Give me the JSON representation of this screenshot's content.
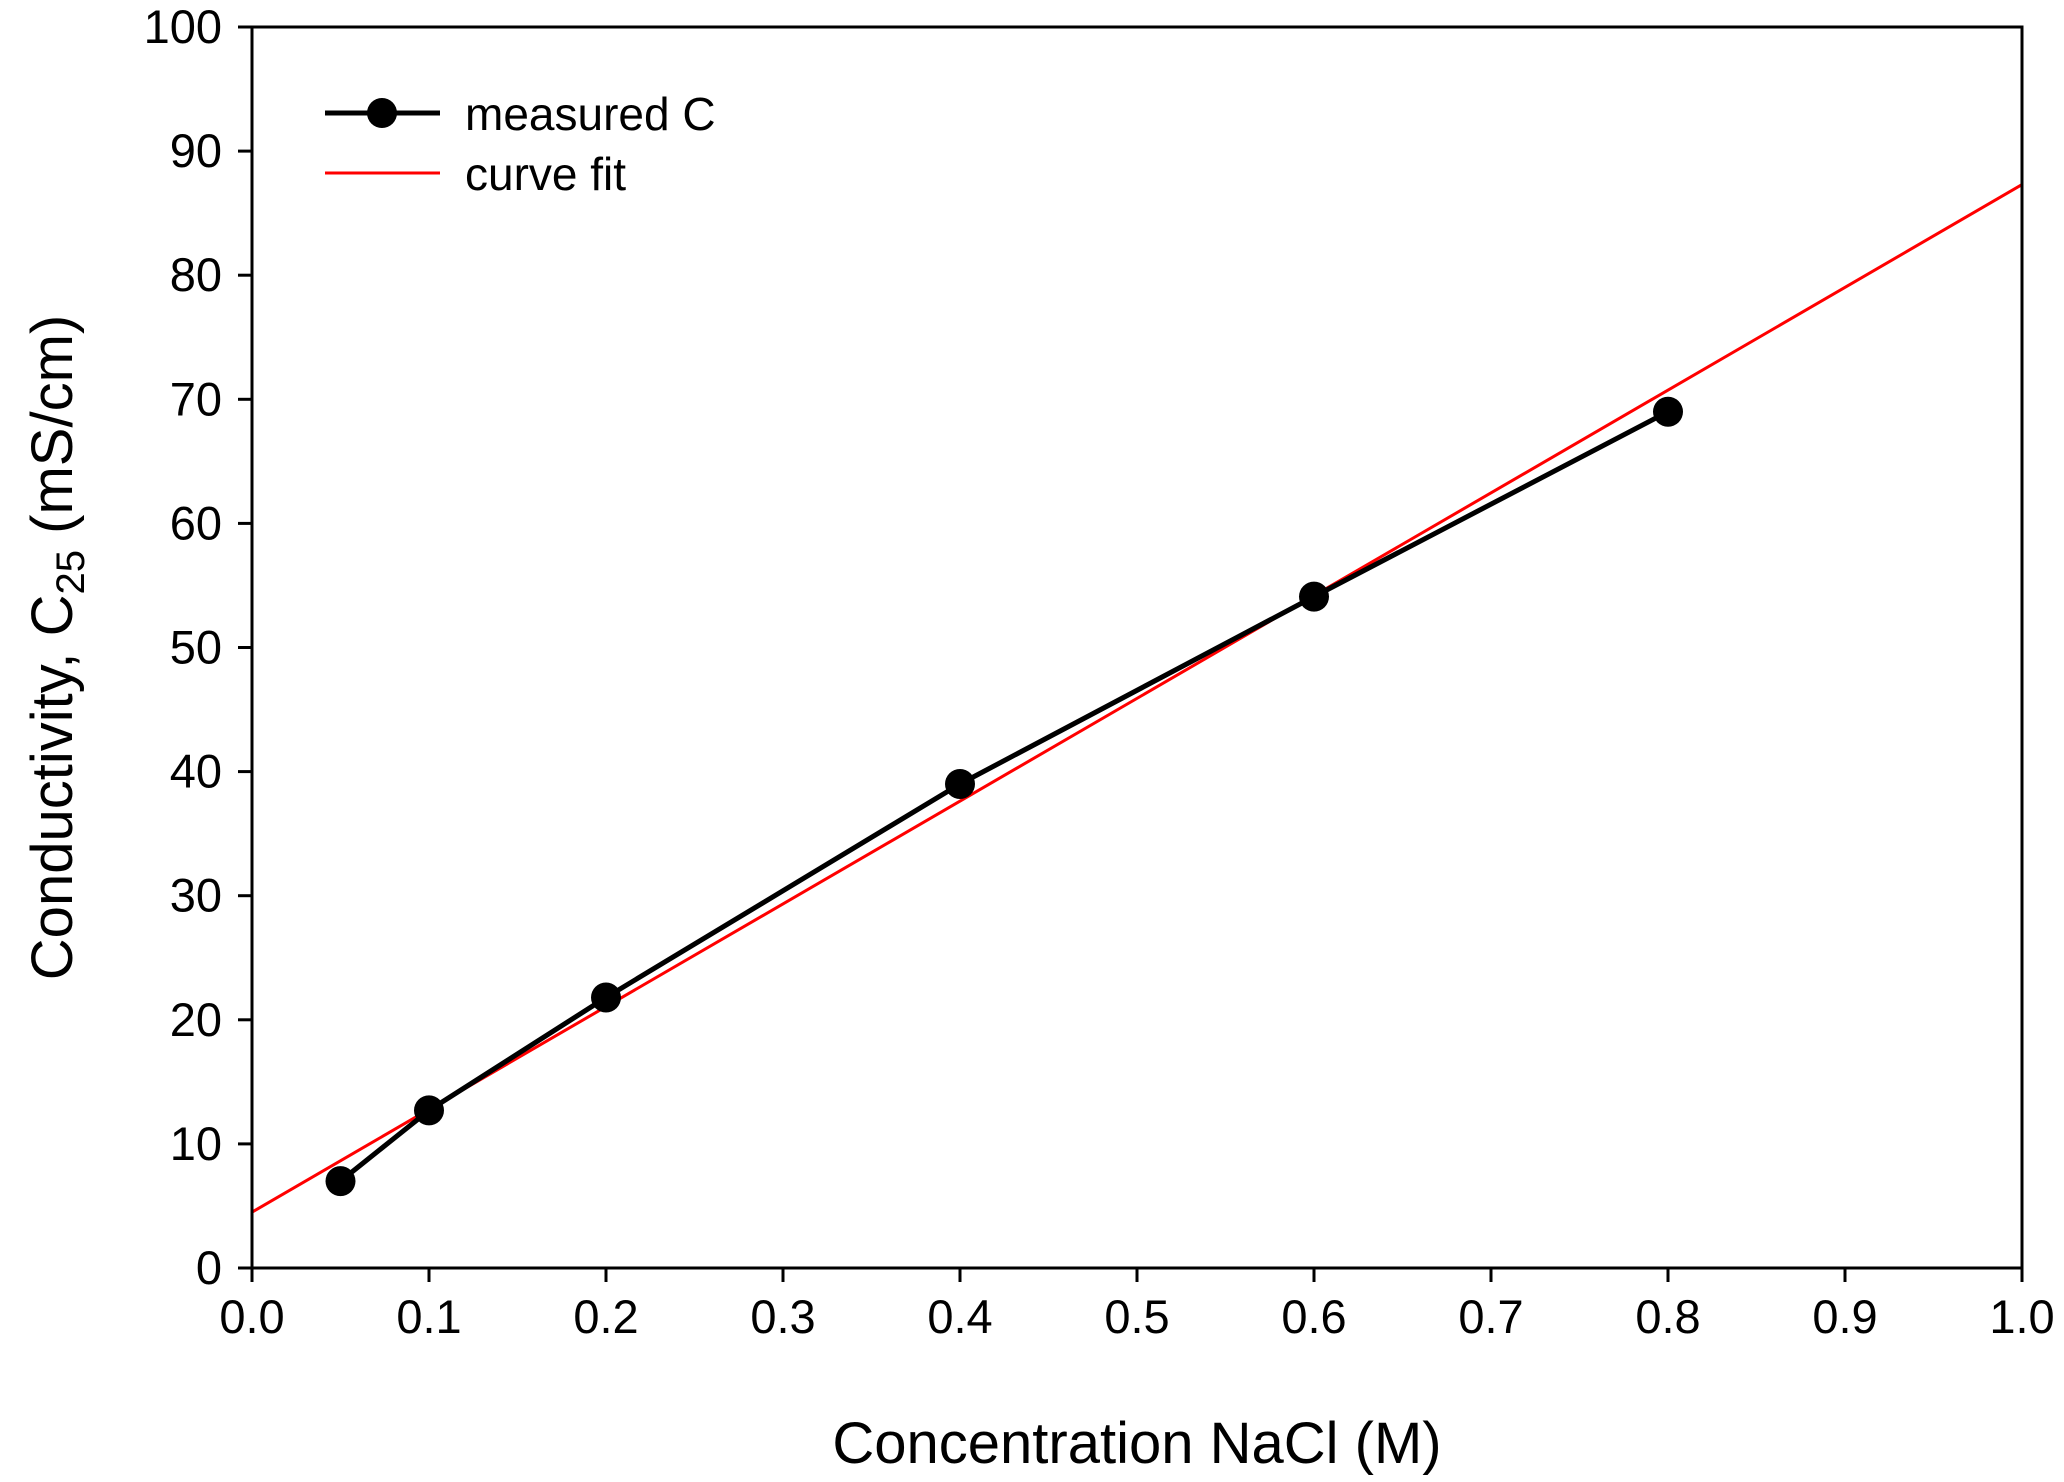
{
  "chart_data": {
    "type": "line",
    "xlabel": "Concentration NaCl  (M)",
    "ylabel": {
      "prefix": "Conductivity,  C",
      "subscript": "25",
      "suffix": "  (mS/cm)"
    },
    "xlim": [
      0.0,
      1.0
    ],
    "ylim": [
      0,
      100
    ],
    "x_ticks": [
      0.0,
      0.1,
      0.2,
      0.3,
      0.4,
      0.5,
      0.6,
      0.7,
      0.8,
      0.9,
      1.0
    ],
    "x_tick_labels": [
      "0.0",
      "0.1",
      "0.2",
      "0.3",
      "0.4",
      "0.5",
      "0.6",
      "0.7",
      "0.8",
      "0.9",
      "1.0"
    ],
    "y_ticks": [
      0,
      10,
      20,
      30,
      40,
      50,
      60,
      70,
      80,
      90,
      100
    ],
    "y_tick_labels": [
      "0",
      "10",
      "20",
      "30",
      "40",
      "50",
      "60",
      "70",
      "80",
      "90",
      "100"
    ],
    "legend_position": "top-left",
    "series": [
      {
        "name": "measured C",
        "kind": "line-markers",
        "color": "#000000",
        "x": [
          0.05,
          0.1,
          0.2,
          0.4,
          0.6,
          0.8
        ],
        "y": [
          7.0,
          12.7,
          21.8,
          39.0,
          54.1,
          69.0
        ]
      },
      {
        "name": "curve fit",
        "kind": "line",
        "color": "#ff0000",
        "x": [
          0.0,
          1.0
        ],
        "y": [
          4.5,
          87.3
        ]
      }
    ]
  }
}
